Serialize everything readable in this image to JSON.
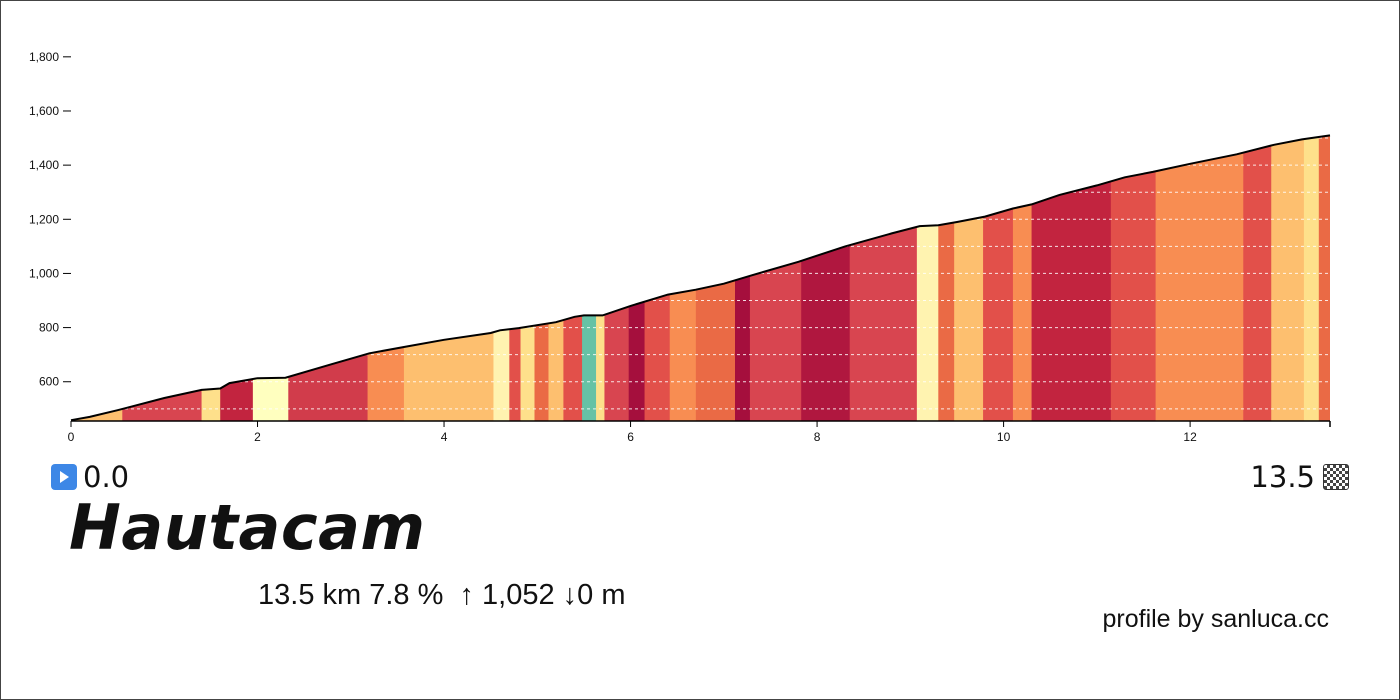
{
  "chart_data": {
    "type": "area",
    "title": "Hautacam",
    "xlabel": "",
    "ylabel": "",
    "xlim": [
      0,
      13.5
    ],
    "ylim": [
      455,
      1840
    ],
    "x_ticks": [
      0,
      2,
      4,
      6,
      8,
      10,
      12
    ],
    "x_tick_labels": [
      "0",
      "2",
      "4",
      "6",
      "8",
      "10",
      "12"
    ],
    "y_ticks": [
      600,
      800,
      1000,
      1200,
      1400,
      1600,
      1800
    ],
    "y_tick_labels": [
      "600",
      "800",
      "1,000",
      "1,200",
      "1,400",
      "1,600",
      "1,800"
    ],
    "grid": true,
    "profile": {
      "distance_km": [
        0,
        0.2,
        0.5,
        1.0,
        1.4,
        1.6,
        1.7,
        2.0,
        2.3,
        2.8,
        3.2,
        3.6,
        4.0,
        4.5,
        4.6,
        4.8,
        5.2,
        5.4,
        5.5,
        5.7,
        6.0,
        6.4,
        6.7,
        7.0,
        7.3,
        7.8,
        8.3,
        8.8,
        9.1,
        9.3,
        9.5,
        9.8,
        10.1,
        10.3,
        10.6,
        11.0,
        11.3,
        11.6,
        12.0,
        12.5,
        12.9,
        13.2,
        13.5
      ],
      "elevation_m": [
        458,
        470,
        495,
        540,
        570,
        575,
        595,
        613,
        615,
        665,
        705,
        730,
        755,
        780,
        790,
        798,
        820,
        840,
        845,
        845,
        880,
        922,
        940,
        962,
        993,
        1043,
        1100,
        1148,
        1175,
        1178,
        1190,
        1210,
        1240,
        1255,
        1290,
        1325,
        1355,
        1375,
        1405,
        1440,
        1475,
        1495,
        1510
      ]
    },
    "segments": [
      {
        "x0": 0.0,
        "x1": 0.55,
        "color": "#fdbf6f"
      },
      {
        "x0": 0.55,
        "x1": 1.4,
        "color": "#d84550"
      },
      {
        "x0": 1.4,
        "x1": 1.6,
        "color": "#fee08b"
      },
      {
        "x0": 1.6,
        "x1": 1.95,
        "color": "#c2243f"
      },
      {
        "x0": 1.95,
        "x1": 2.33,
        "color": "#ffffbf"
      },
      {
        "x0": 2.33,
        "x1": 3.18,
        "color": "#d13c4b"
      },
      {
        "x0": 3.18,
        "x1": 3.57,
        "color": "#f88d52"
      },
      {
        "x0": 3.57,
        "x1": 4.53,
        "color": "#fdbf6f"
      },
      {
        "x0": 4.53,
        "x1": 4.7,
        "color": "#fff3b0"
      },
      {
        "x0": 4.7,
        "x1": 4.82,
        "color": "#e2504a"
      },
      {
        "x0": 4.82,
        "x1": 4.97,
        "color": "#fee08b"
      },
      {
        "x0": 4.97,
        "x1": 5.12,
        "color": "#ea6a45"
      },
      {
        "x0": 5.12,
        "x1": 5.28,
        "color": "#fdbf6f"
      },
      {
        "x0": 5.28,
        "x1": 5.48,
        "color": "#e2504a"
      },
      {
        "x0": 5.48,
        "x1": 5.63,
        "color": "#66c2a5"
      },
      {
        "x0": 5.63,
        "x1": 5.72,
        "color": "#fee08b"
      },
      {
        "x0": 5.72,
        "x1": 5.98,
        "color": "#d84550"
      },
      {
        "x0": 5.98,
        "x1": 6.15,
        "color": "#a50f3d"
      },
      {
        "x0": 6.15,
        "x1": 6.42,
        "color": "#e2504a"
      },
      {
        "x0": 6.42,
        "x1": 6.7,
        "color": "#f88d52"
      },
      {
        "x0": 6.7,
        "x1": 7.12,
        "color": "#ea6a45"
      },
      {
        "x0": 7.12,
        "x1": 7.28,
        "color": "#a50f3d"
      },
      {
        "x0": 7.28,
        "x1": 7.83,
        "color": "#d84550"
      },
      {
        "x0": 7.83,
        "x1": 8.35,
        "color": "#b0173f"
      },
      {
        "x0": 8.35,
        "x1": 9.07,
        "color": "#d84550"
      },
      {
        "x0": 9.07,
        "x1": 9.3,
        "color": "#fff3b0"
      },
      {
        "x0": 9.3,
        "x1": 9.47,
        "color": "#ea6a45"
      },
      {
        "x0": 9.47,
        "x1": 9.78,
        "color": "#fdbf6f"
      },
      {
        "x0": 9.78,
        "x1": 10.1,
        "color": "#e2504a"
      },
      {
        "x0": 10.1,
        "x1": 10.3,
        "color": "#f88d52"
      },
      {
        "x0": 10.3,
        "x1": 11.15,
        "color": "#c2243f"
      },
      {
        "x0": 11.15,
        "x1": 11.63,
        "color": "#e2504a"
      },
      {
        "x0": 11.63,
        "x1": 12.57,
        "color": "#f88d52"
      },
      {
        "x0": 12.57,
        "x1": 12.87,
        "color": "#e2504a"
      },
      {
        "x0": 12.87,
        "x1": 13.22,
        "color": "#fdbf6f"
      },
      {
        "x0": 13.22,
        "x1": 13.38,
        "color": "#fee08b"
      },
      {
        "x0": 13.38,
        "x1": 13.5,
        "color": "#ea6a45"
      }
    ]
  },
  "start_label": "0.0",
  "end_label": "13.5",
  "title": "Hautacam",
  "stats": "13.5 km 7.8 %  ↑ 1,052 ↓0 m",
  "credit": "profile by sanluca.cc",
  "icons": {
    "start": "play-icon",
    "end": "checkered-flag-icon"
  }
}
